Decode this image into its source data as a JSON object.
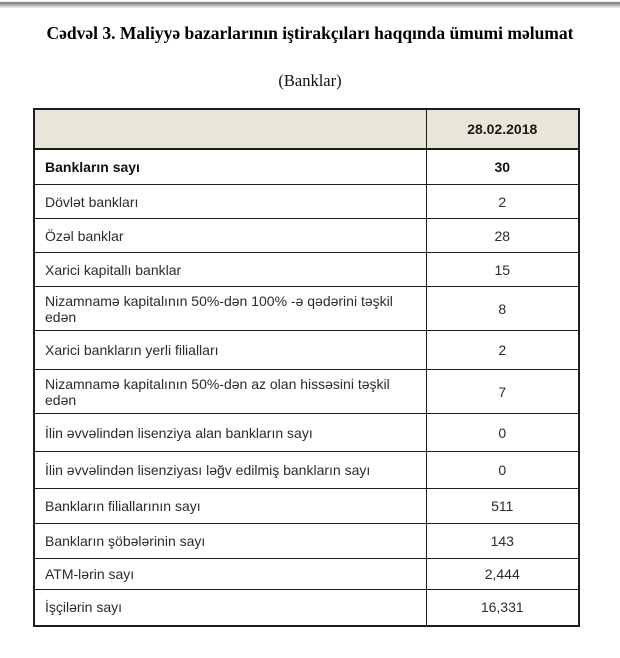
{
  "document": {
    "title": "Cədvəl 3. Maliyyə bazarlarının iştirakçıları haqqında ümumi məlumat",
    "subtitle": "(Banklar)"
  },
  "table": {
    "columns": [
      "",
      "28.02.2018"
    ],
    "rows": [
      {
        "label": "Bankların sayı",
        "value": "30"
      },
      {
        "label": "Dövlət bankları",
        "value": "2"
      },
      {
        "label": "Özəl banklar",
        "value": "28"
      },
      {
        "label": "Xarici kapitallı banklar",
        "value": "15"
      },
      {
        "label": "Nizamnamə kapitalının 50%-dən 100% -ə qədərini təşkil edən",
        "value": "8"
      },
      {
        "label": "Xarici bankların yerli filialları",
        "value": "2"
      },
      {
        "label": "Nizamnamə kapitalının 50%-dən az olan hissəsini  təşkil edən",
        "value": "7"
      },
      {
        "label": "İlin əvvəlindən lisenziya alan bankların sayı",
        "value": "0"
      },
      {
        "label": "İlin əvvəlindən lisenziyası ləğv edilmiş bankların sayı",
        "value": "0"
      },
      {
        "label": "Bankların filiallarının sayı",
        "value": "511"
      },
      {
        "label": "Bankların şöbələrinin sayı",
        "value": "143"
      },
      {
        "label": "ATM-lərin sayı",
        "value": "2,444"
      },
      {
        "label": "İşçilərin sayı",
        "value": "16,331"
      }
    ]
  },
  "colors": {
    "header_bg": "#e8e5d9",
    "table_border": "#1d1d1d",
    "body_text": "#2b2b2b"
  }
}
